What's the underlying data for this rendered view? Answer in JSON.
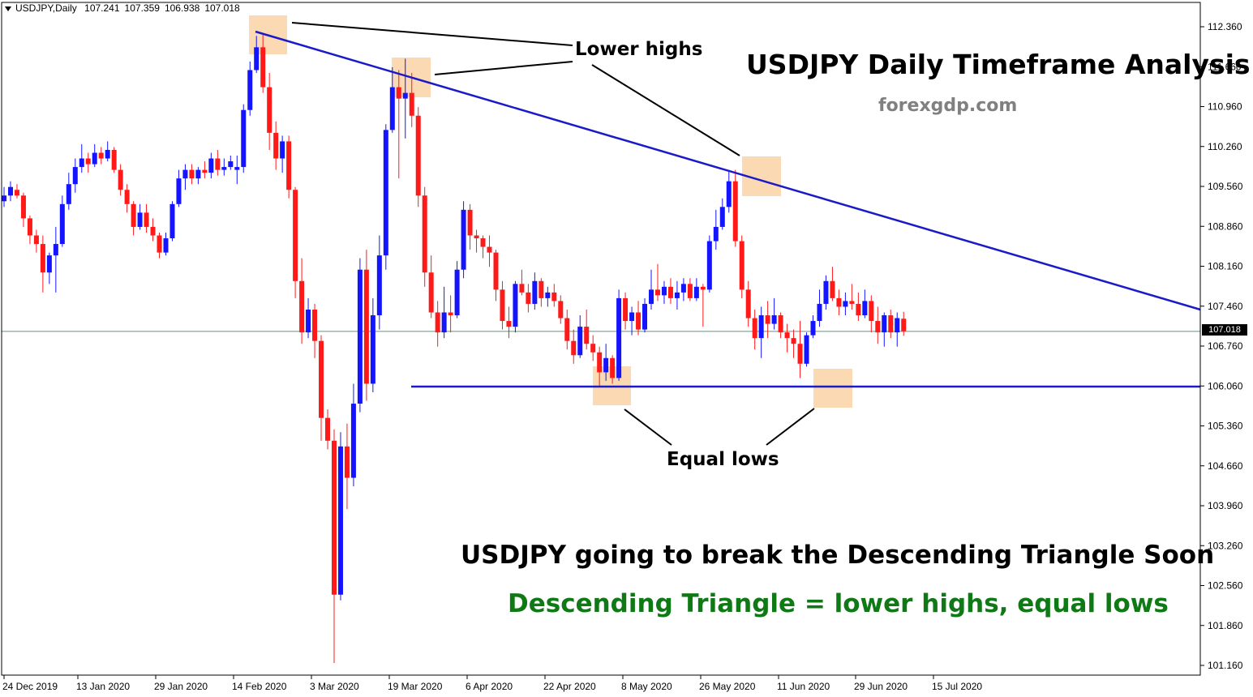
{
  "header": {
    "symbol": "USDJPY,Daily",
    "open": "107.241",
    "high": "107.359",
    "low": "106.938",
    "close": "107.018"
  },
  "annotations": {
    "title": "USDJPY Daily Timeframe Analysis",
    "site": "forexgdp.com",
    "lower_highs": "Lower highs",
    "equal_lows": "Equal lows",
    "headline": "USDJPY going to break the Descending Triangle Soon",
    "definition": "Descending Triangle = lower highs, equal lows"
  },
  "colors": {
    "bull": "#1414ff",
    "bear": "#ff1a1a",
    "trendline": "#1a1ac8",
    "highlight": "#fbd9b3",
    "definition_text": "#0f7a15",
    "axis": "#000000",
    "price_line": "#6e8f7c"
  },
  "chart_data": {
    "type": "candlestick",
    "title": "USDJPY Daily Timeframe Analysis",
    "y_ticks": [
      "112.360",
      "111.660",
      "110.960",
      "110.260",
      "109.560",
      "108.860",
      "108.160",
      "107.460",
      "106.760",
      "106.060",
      "105.360",
      "104.660",
      "103.960",
      "103.260",
      "102.560",
      "101.860",
      "101.160"
    ],
    "x_ticks": [
      "24 Dec 2019",
      "13 Jan 2020",
      "29 Jan 2020",
      "14 Feb 2020",
      "3 Mar 2020",
      "19 Mar 2020",
      "6 Apr 2020",
      "22 Apr 2020",
      "8 May 2020",
      "26 May 2020",
      "11 Jun 2020",
      "29 Jun 2020",
      "15 Jul 2020"
    ],
    "ylim": [
      101.0,
      112.6
    ],
    "current_price": "107.018",
    "candles": [
      [
        109.3,
        109.55,
        109.2,
        109.4
      ],
      [
        109.4,
        109.65,
        109.3,
        109.55
      ],
      [
        109.5,
        109.6,
        109.35,
        109.4
      ],
      [
        109.4,
        109.45,
        108.85,
        109.0
      ],
      [
        109.0,
        109.05,
        108.55,
        108.7
      ],
      [
        108.7,
        108.8,
        108.4,
        108.55
      ],
      [
        108.55,
        108.7,
        107.7,
        108.05
      ],
      [
        108.05,
        108.4,
        107.85,
        108.35
      ],
      [
        108.35,
        108.85,
        107.7,
        108.55
      ],
      [
        108.55,
        109.4,
        108.5,
        109.25
      ],
      [
        109.25,
        109.8,
        109.15,
        109.6
      ],
      [
        109.6,
        110.05,
        109.45,
        109.9
      ],
      [
        109.9,
        110.3,
        109.8,
        110.05
      ],
      [
        110.05,
        110.15,
        109.8,
        109.95
      ],
      [
        109.95,
        110.3,
        109.9,
        110.15
      ],
      [
        110.15,
        110.25,
        109.95,
        110.05
      ],
      [
        110.05,
        110.35,
        110.0,
        110.2
      ],
      [
        110.2,
        110.25,
        109.8,
        109.85
      ],
      [
        109.85,
        109.95,
        109.4,
        109.5
      ],
      [
        109.5,
        109.6,
        109.1,
        109.25
      ],
      [
        109.25,
        109.3,
        108.7,
        108.85
      ],
      [
        108.85,
        109.25,
        108.8,
        109.1
      ],
      [
        109.1,
        109.25,
        108.75,
        108.85
      ],
      [
        108.85,
        109.0,
        108.6,
        108.7
      ],
      [
        108.7,
        108.75,
        108.3,
        108.4
      ],
      [
        108.4,
        108.75,
        108.35,
        108.65
      ],
      [
        108.65,
        109.3,
        108.6,
        109.25
      ],
      [
        109.25,
        109.85,
        109.2,
        109.7
      ],
      [
        109.7,
        109.95,
        109.5,
        109.85
      ],
      [
        109.85,
        109.95,
        109.6,
        109.7
      ],
      [
        109.7,
        109.9,
        109.6,
        109.85
      ],
      [
        109.85,
        110.0,
        109.7,
        109.8
      ],
      [
        109.8,
        110.15,
        109.7,
        110.05
      ],
      [
        110.05,
        110.2,
        109.75,
        109.85
      ],
      [
        109.85,
        110.05,
        109.75,
        109.9
      ],
      [
        109.9,
        110.1,
        109.85,
        110.0
      ],
      [
        109.85,
        110.1,
        109.6,
        109.9
      ],
      [
        109.9,
        111.0,
        109.8,
        110.9
      ],
      [
        110.9,
        111.75,
        110.8,
        111.6
      ],
      [
        111.6,
        112.2,
        111.55,
        112.0
      ],
      [
        112.0,
        112.25,
        111.2,
        111.3
      ],
      [
        111.3,
        111.55,
        110.2,
        110.5
      ],
      [
        110.5,
        110.7,
        109.85,
        110.05
      ],
      [
        110.05,
        110.45,
        109.8,
        110.35
      ],
      [
        110.35,
        110.45,
        109.35,
        109.5
      ],
      [
        109.5,
        109.55,
        107.6,
        107.9
      ],
      [
        107.9,
        108.3,
        106.8,
        107.0
      ],
      [
        107.0,
        107.6,
        106.9,
        107.4
      ],
      [
        107.4,
        107.5,
        106.55,
        106.85
      ],
      [
        106.85,
        106.95,
        105.1,
        105.5
      ],
      [
        105.5,
        105.65,
        104.95,
        105.1
      ],
      [
        105.1,
        105.3,
        101.2,
        102.4
      ],
      [
        102.4,
        105.25,
        102.3,
        105.0
      ],
      [
        105.0,
        105.4,
        103.9,
        104.45
      ],
      [
        104.45,
        106.1,
        104.3,
        105.75
      ],
      [
        105.75,
        108.3,
        105.6,
        108.1
      ],
      [
        108.1,
        108.45,
        105.8,
        106.1
      ],
      [
        106.1,
        107.6,
        105.95,
        107.3
      ],
      [
        107.3,
        108.7,
        107.05,
        108.35
      ],
      [
        108.35,
        110.65,
        108.1,
        110.55
      ],
      [
        110.55,
        111.65,
        110.5,
        111.3
      ],
      [
        111.3,
        111.6,
        109.7,
        111.1
      ],
      [
        111.1,
        111.8,
        110.4,
        111.2
      ],
      [
        111.2,
        111.55,
        110.6,
        110.8
      ],
      [
        110.8,
        110.95,
        109.2,
        109.4
      ],
      [
        109.4,
        109.55,
        107.8,
        108.05
      ],
      [
        108.05,
        108.35,
        107.25,
        107.35
      ],
      [
        107.35,
        107.55,
        106.75,
        107.0
      ],
      [
        107.0,
        107.8,
        106.9,
        107.35
      ],
      [
        107.35,
        107.65,
        107.0,
        107.3
      ],
      [
        107.3,
        108.25,
        107.25,
        108.1
      ],
      [
        108.1,
        109.3,
        107.95,
        109.15
      ],
      [
        109.15,
        109.25,
        108.45,
        108.7
      ],
      [
        108.7,
        108.8,
        108.4,
        108.65
      ],
      [
        108.65,
        108.7,
        108.3,
        108.5
      ],
      [
        108.5,
        108.7,
        108.15,
        108.4
      ],
      [
        108.4,
        108.45,
        107.55,
        107.75
      ],
      [
        107.75,
        107.9,
        107.05,
        107.2
      ],
      [
        107.2,
        107.45,
        106.9,
        107.1
      ],
      [
        107.1,
        107.9,
        107.0,
        107.85
      ],
      [
        107.85,
        108.1,
        107.65,
        107.7
      ],
      [
        107.7,
        107.85,
        107.35,
        107.5
      ],
      [
        107.5,
        108.05,
        107.4,
        107.9
      ],
      [
        107.9,
        107.95,
        107.45,
        107.6
      ],
      [
        107.6,
        107.8,
        107.45,
        107.7
      ],
      [
        107.7,
        107.85,
        107.45,
        107.55
      ],
      [
        107.55,
        107.65,
        107.15,
        107.25
      ],
      [
        107.25,
        107.4,
        106.7,
        106.85
      ],
      [
        106.85,
        107.05,
        106.45,
        106.6
      ],
      [
        106.6,
        107.3,
        106.55,
        107.1
      ],
      [
        107.1,
        107.4,
        106.7,
        106.8
      ],
      [
        106.8,
        106.95,
        106.5,
        106.65
      ],
      [
        106.65,
        106.75,
        106.05,
        106.3
      ],
      [
        106.3,
        106.8,
        106.15,
        106.55
      ],
      [
        106.55,
        106.6,
        106.1,
        106.2
      ],
      [
        106.2,
        107.75,
        106.15,
        107.6
      ],
      [
        107.6,
        107.7,
        107.05,
        107.2
      ],
      [
        107.2,
        107.45,
        106.95,
        107.35
      ],
      [
        107.35,
        107.55,
        106.95,
        107.05
      ],
      [
        107.05,
        107.6,
        107.0,
        107.5
      ],
      [
        107.5,
        108.1,
        107.4,
        107.75
      ],
      [
        107.75,
        108.2,
        107.55,
        107.65
      ],
      [
        107.65,
        107.9,
        107.5,
        107.8
      ],
      [
        107.8,
        107.95,
        107.5,
        107.6
      ],
      [
        107.6,
        107.9,
        107.4,
        107.7
      ],
      [
        107.7,
        107.95,
        107.55,
        107.85
      ],
      [
        107.85,
        107.95,
        107.55,
        107.6
      ],
      [
        107.6,
        107.95,
        107.55,
        107.8
      ],
      [
        107.8,
        107.85,
        107.1,
        107.75
      ],
      [
        107.75,
        108.7,
        107.7,
        108.6
      ],
      [
        108.6,
        109.15,
        108.45,
        108.85
      ],
      [
        108.85,
        109.35,
        108.8,
        109.2
      ],
      [
        109.2,
        109.85,
        109.1,
        109.65
      ],
      [
        109.65,
        109.85,
        108.5,
        108.6
      ],
      [
        108.6,
        108.7,
        107.6,
        107.75
      ],
      [
        107.75,
        107.9,
        107.1,
        107.25
      ],
      [
        107.25,
        107.4,
        106.7,
        106.9
      ],
      [
        106.9,
        107.45,
        106.55,
        107.3
      ],
      [
        107.3,
        107.55,
        106.9,
        107.15
      ],
      [
        107.15,
        107.6,
        107.05,
        107.3
      ],
      [
        107.3,
        107.35,
        106.9,
        107.0
      ],
      [
        107.0,
        107.15,
        106.65,
        106.9
      ],
      [
        106.9,
        107.05,
        106.55,
        106.8
      ],
      [
        106.8,
        107.2,
        106.2,
        106.45
      ],
      [
        106.45,
        107.0,
        106.4,
        106.95
      ],
      [
        106.95,
        107.3,
        106.9,
        107.2
      ],
      [
        107.2,
        107.75,
        107.1,
        107.5
      ],
      [
        107.5,
        108.0,
        107.4,
        107.9
      ],
      [
        107.9,
        108.15,
        107.55,
        107.6
      ],
      [
        107.6,
        107.75,
        107.3,
        107.45
      ],
      [
        107.45,
        107.7,
        107.3,
        107.55
      ],
      [
        107.55,
        107.85,
        107.4,
        107.5
      ],
      [
        107.5,
        107.7,
        107.2,
        107.3
      ],
      [
        107.3,
        107.75,
        107.25,
        107.55
      ],
      [
        107.55,
        107.65,
        107.0,
        107.2
      ],
      [
        107.2,
        107.45,
        106.8,
        107.0
      ],
      [
        107.0,
        107.35,
        106.75,
        107.3
      ],
      [
        107.3,
        107.4,
        106.9,
        107.0
      ],
      [
        107.0,
        107.35,
        106.75,
        107.25
      ],
      [
        107.24,
        107.36,
        106.94,
        107.02
      ]
    ]
  }
}
